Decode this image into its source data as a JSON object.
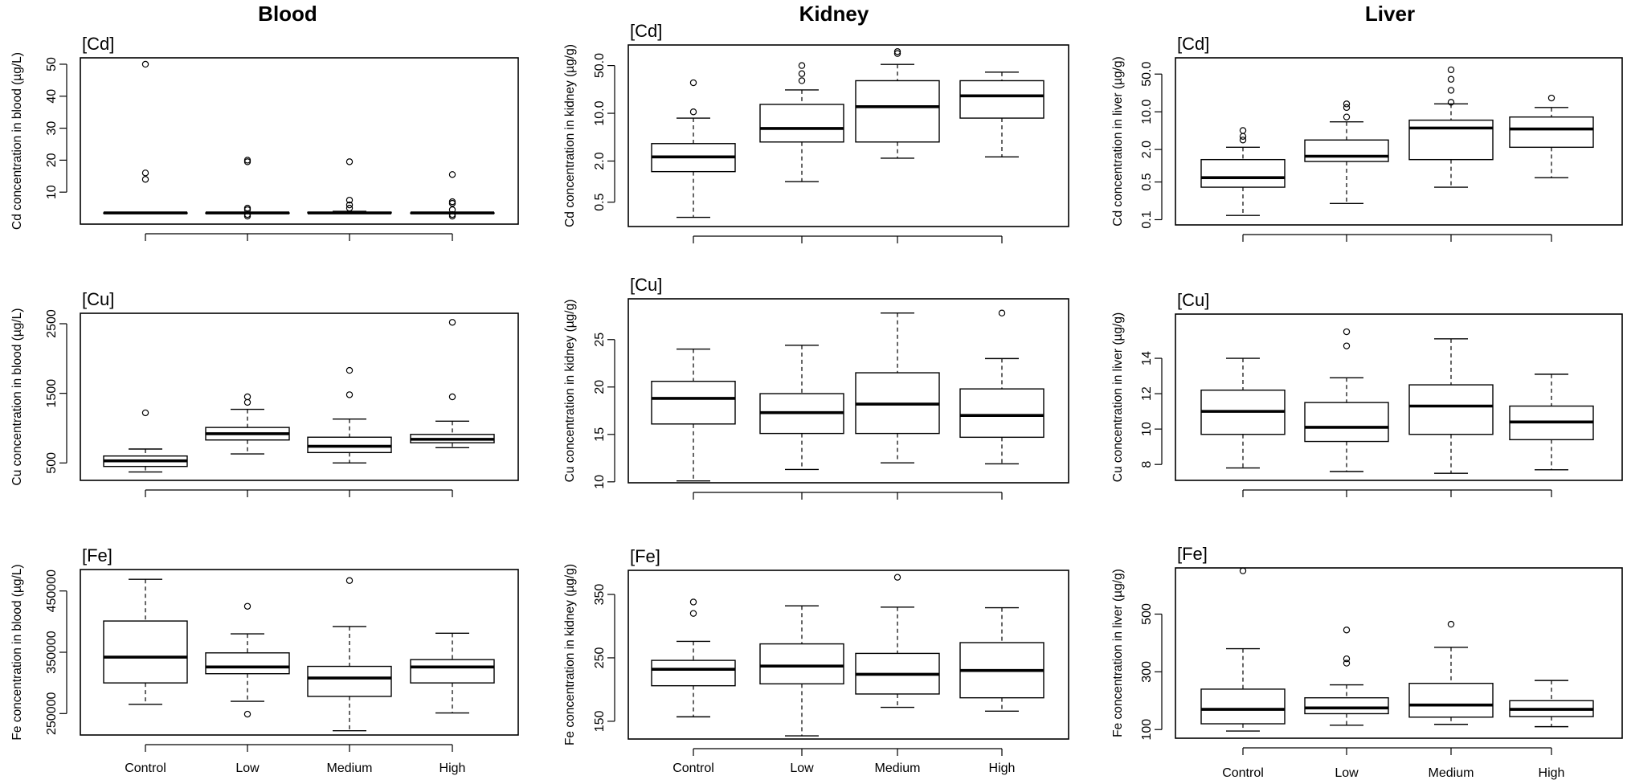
{
  "column_titles": [
    "Blood",
    "Kidney",
    "Liver"
  ],
  "categories": [
    "Control",
    "Low",
    "Medium",
    "High"
  ],
  "chart_data": [
    {
      "type": "box",
      "column": "Blood",
      "tag": "[Cd]",
      "ylabel": "Cd concentration in blood (µg/L)",
      "scale": "linear",
      "ylim": [
        0,
        52
      ],
      "yticks": [
        10,
        20,
        30,
        40,
        50
      ],
      "show_xlabels": false,
      "boxes": [
        {
          "category": "Control",
          "whisker_low": 3.5,
          "q1": 3.5,
          "median": 3.5,
          "q3": 3.5,
          "whisker_high": 3.5,
          "outliers": [
            14,
            16,
            50
          ]
        },
        {
          "category": "Low",
          "whisker_low": 3.5,
          "q1": 3.5,
          "median": 3.5,
          "q3": 3.5,
          "whisker_high": 3.5,
          "outliers": [
            2.5,
            3,
            4.5,
            5,
            19.5,
            20
          ]
        },
        {
          "category": "Medium",
          "whisker_low": 3.5,
          "q1": 3.5,
          "median": 3.5,
          "q3": 3.7,
          "whisker_high": 4,
          "outliers": [
            5,
            6,
            7.5,
            19.5
          ]
        },
        {
          "category": "High",
          "whisker_low": 3.5,
          "q1": 3.5,
          "median": 3.5,
          "q3": 3.5,
          "whisker_high": 3.5,
          "outliers": [
            2.5,
            3,
            4.5,
            6.5,
            7,
            15.5
          ]
        }
      ]
    },
    {
      "type": "box",
      "column": "Kidney",
      "tag": "[Cd]",
      "ylabel": "Cd concentration in kidney (µg/g)",
      "scale": "log",
      "ylim": [
        0.22,
        100
      ],
      "yticks": [
        0.5,
        2.0,
        10.0,
        50.0
      ],
      "ytick_labels": [
        "0.5",
        "2.0",
        "10.0",
        "50.0"
      ],
      "show_xlabels": false,
      "boxes": [
        {
          "category": "Control",
          "whisker_low": 0.3,
          "q1": 1.4,
          "median": 2.3,
          "q3": 3.6,
          "whisker_high": 8.5,
          "outliers": [
            10.5,
            28
          ]
        },
        {
          "category": "Low",
          "whisker_low": 1.0,
          "q1": 3.8,
          "median": 6.0,
          "q3": 13.5,
          "whisker_high": 22,
          "outliers": [
            30,
            38,
            50
          ]
        },
        {
          "category": "Medium",
          "whisker_low": 2.2,
          "q1": 3.8,
          "median": 12.5,
          "q3": 30,
          "whisker_high": 52,
          "outliers": [
            75,
            80
          ]
        },
        {
          "category": "High",
          "whisker_low": 2.3,
          "q1": 8.5,
          "median": 18,
          "q3": 30,
          "whisker_high": 40,
          "outliers": []
        }
      ]
    },
    {
      "type": "box",
      "column": "Liver",
      "tag": "[Cd]",
      "ylabel": "Cd concentration in liver (µg/g)",
      "scale": "log",
      "ylim": [
        0.08,
        100
      ],
      "yticks": [
        0.1,
        0.5,
        2.0,
        10.0,
        50.0
      ],
      "ytick_labels": [
        "0.1",
        "0.5",
        "2.0",
        "10.0",
        "50.0"
      ],
      "show_xlabels": false,
      "boxes": [
        {
          "category": "Control",
          "whisker_low": 0.12,
          "q1": 0.4,
          "median": 0.6,
          "q3": 1.3,
          "whisker_high": 2.2,
          "outliers": [
            3,
            3.5,
            4.5
          ]
        },
        {
          "category": "Low",
          "whisker_low": 0.2,
          "q1": 1.2,
          "median": 1.5,
          "q3": 3.0,
          "whisker_high": 6.5,
          "outliers": [
            8,
            12,
            14
          ]
        },
        {
          "category": "Medium",
          "whisker_low": 0.4,
          "q1": 1.3,
          "median": 5,
          "q3": 7,
          "whisker_high": 14,
          "outliers": [
            15,
            25,
            40,
            60
          ]
        },
        {
          "category": "High",
          "whisker_low": 0.6,
          "q1": 2.2,
          "median": 4.8,
          "q3": 8,
          "whisker_high": 12,
          "outliers": [
            18
          ]
        }
      ]
    },
    {
      "type": "box",
      "column": "Blood",
      "tag": "[Cu]",
      "ylabel": "Cu concentration in blood (µg/L)",
      "scale": "linear",
      "ylim": [
        250,
        2650
      ],
      "yticks": [
        500,
        1500,
        2500
      ],
      "show_xlabels": false,
      "boxes": [
        {
          "category": "Control",
          "whisker_low": 370,
          "q1": 450,
          "median": 530,
          "q3": 600,
          "whisker_high": 700,
          "outliers": [
            1220
          ]
        },
        {
          "category": "Low",
          "whisker_low": 630,
          "q1": 830,
          "median": 920,
          "q3": 1010,
          "whisker_high": 1270,
          "outliers": [
            1370,
            1450
          ]
        },
        {
          "category": "Medium",
          "whisker_low": 500,
          "q1": 650,
          "median": 740,
          "q3": 870,
          "whisker_high": 1130,
          "outliers": [
            1480,
            1830
          ]
        },
        {
          "category": "High",
          "whisker_low": 720,
          "q1": 790,
          "median": 840,
          "q3": 910,
          "whisker_high": 1100,
          "outliers": [
            1450,
            2520
          ]
        }
      ]
    },
    {
      "type": "box",
      "column": "Kidney",
      "tag": "[Cu]",
      "ylabel": "Cu concentration in kidney (µg/g)",
      "scale": "linear",
      "ylim": [
        9.9,
        29.3
      ],
      "yticks": [
        10,
        15,
        20,
        25
      ],
      "show_xlabels": false,
      "boxes": [
        {
          "category": "Control",
          "whisker_low": 10.1,
          "q1": 16.1,
          "median": 18.8,
          "q3": 20.6,
          "whisker_high": 24,
          "outliers": []
        },
        {
          "category": "Low",
          "whisker_low": 11.3,
          "q1": 15.1,
          "median": 17.3,
          "q3": 19.3,
          "whisker_high": 24.4,
          "outliers": []
        },
        {
          "category": "Medium",
          "whisker_low": 12,
          "q1": 15.1,
          "median": 18.2,
          "q3": 21.5,
          "whisker_high": 27.8,
          "outliers": []
        },
        {
          "category": "High",
          "whisker_low": 11.9,
          "q1": 14.7,
          "median": 17,
          "q3": 19.8,
          "whisker_high": 23,
          "outliers": [
            27.8
          ]
        }
      ]
    },
    {
      "type": "box",
      "column": "Liver",
      "tag": "[Cu]",
      "ylabel": "Cu concentration in liver (µg/g)",
      "scale": "linear",
      "ylim": [
        7.1,
        16.5
      ],
      "yticks": [
        8,
        10,
        12,
        14
      ],
      "show_xlabels": false,
      "boxes": [
        {
          "category": "Control",
          "whisker_low": 7.8,
          "q1": 9.7,
          "median": 11,
          "q3": 12.2,
          "whisker_high": 14,
          "outliers": []
        },
        {
          "category": "Low",
          "whisker_low": 7.6,
          "q1": 9.3,
          "median": 10.1,
          "q3": 11.5,
          "whisker_high": 12.9,
          "outliers": [
            14.7,
            15.5
          ]
        },
        {
          "category": "Medium",
          "whisker_low": 7.5,
          "q1": 9.7,
          "median": 11.3,
          "q3": 12.5,
          "whisker_high": 15.1,
          "outliers": []
        },
        {
          "category": "High",
          "whisker_low": 7.7,
          "q1": 9.4,
          "median": 10.4,
          "q3": 11.3,
          "whisker_high": 13.1,
          "outliers": []
        }
      ]
    },
    {
      "type": "box",
      "column": "Blood",
      "tag": "[Fe]",
      "ylabel": "Fe concentration in blood (µg/L)",
      "scale": "linear",
      "ylim": [
        215000,
        485000
      ],
      "yticks": [
        250000,
        350000,
        450000
      ],
      "show_xlabels": true,
      "boxes": [
        {
          "category": "Control",
          "whisker_low": 265000,
          "q1": 300000,
          "median": 342000,
          "q3": 401000,
          "whisker_high": 469000,
          "outliers": []
        },
        {
          "category": "Low",
          "whisker_low": 270000,
          "q1": 315000,
          "median": 326000,
          "q3": 349000,
          "whisker_high": 380000,
          "outliers": [
            249000,
            425000
          ]
        },
        {
          "category": "Medium",
          "whisker_low": 222000,
          "q1": 278000,
          "median": 308000,
          "q3": 327000,
          "whisker_high": 392000,
          "outliers": [
            467000
          ]
        },
        {
          "category": "High",
          "whisker_low": 251000,
          "q1": 300000,
          "median": 326000,
          "q3": 338000,
          "whisker_high": 381000,
          "outliers": []
        }
      ]
    },
    {
      "type": "box",
      "column": "Kidney",
      "tag": "[Fe]",
      "ylabel": "Fe concentration in kidney (µg/g)",
      "scale": "linear",
      "ylim": [
        122,
        388
      ],
      "yticks": [
        150,
        250,
        350
      ],
      "show_xlabels": true,
      "boxes": [
        {
          "category": "Control",
          "whisker_low": 157,
          "q1": 206,
          "median": 232,
          "q3": 246,
          "whisker_high": 276,
          "outliers": [
            320,
            338
          ]
        },
        {
          "category": "Low",
          "whisker_low": 127,
          "q1": 209,
          "median": 237,
          "q3": 272,
          "whisker_high": 332,
          "outliers": []
        },
        {
          "category": "Medium",
          "whisker_low": 172,
          "q1": 193,
          "median": 224,
          "q3": 257,
          "whisker_high": 330,
          "outliers": [
            377
          ]
        },
        {
          "category": "High",
          "whisker_low": 166,
          "q1": 187,
          "median": 230,
          "q3": 274,
          "whisker_high": 329,
          "outliers": []
        }
      ]
    },
    {
      "type": "box",
      "column": "Liver",
      "tag": "[Fe]",
      "ylabel": "Fe concentration in liver (µg/g)",
      "scale": "linear",
      "ylim": [
        70,
        660
      ],
      "yticks": [
        100,
        300,
        500
      ],
      "show_xlabels": true,
      "boxes": [
        {
          "category": "Control",
          "whisker_low": 95,
          "q1": 120,
          "median": 170,
          "q3": 240,
          "whisker_high": 380,
          "outliers": [
            650
          ]
        },
        {
          "category": "Low",
          "whisker_low": 115,
          "q1": 155,
          "median": 175,
          "q3": 210,
          "whisker_high": 255,
          "outliers": [
            330,
            345,
            445
          ]
        },
        {
          "category": "Medium",
          "whisker_low": 118,
          "q1": 143,
          "median": 185,
          "q3": 260,
          "whisker_high": 385,
          "outliers": [
            465
          ]
        },
        {
          "category": "High",
          "whisker_low": 110,
          "q1": 145,
          "median": 170,
          "q3": 200,
          "whisker_high": 270,
          "outliers": []
        }
      ]
    }
  ]
}
